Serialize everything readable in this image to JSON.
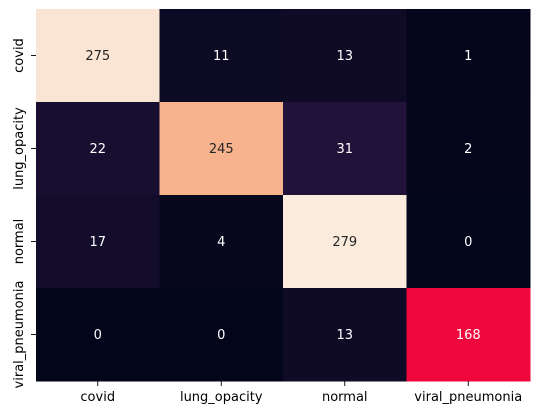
{
  "chart_data": {
    "type": "heatmap",
    "x_categories": [
      "covid",
      "lung_opacity",
      "normal",
      "viral_pneumonia"
    ],
    "y_categories": [
      "covid",
      "lung_opacity",
      "normal",
      "viral_pneumonia"
    ],
    "values": [
      [
        275,
        11,
        13,
        1
      ],
      [
        22,
        245,
        31,
        2
      ],
      [
        17,
        4,
        279,
        0
      ],
      [
        0,
        0,
        13,
        168
      ]
    ],
    "color_range": [
      0,
      279
    ],
    "colormap": "rocket",
    "colorbar": false,
    "title": "",
    "xlabel": "",
    "ylabel": ""
  }
}
